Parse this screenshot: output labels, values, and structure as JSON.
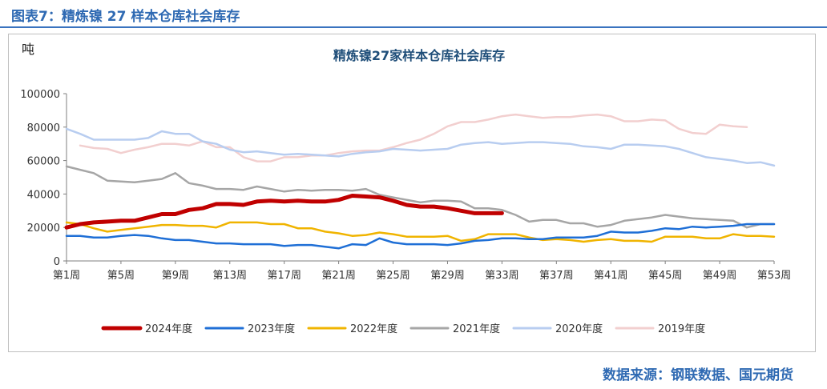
{
  "figure_title": "图表7：精炼镍 27 样本仓库社会库存",
  "source_note": "数据来源：钢联数据、国元期货",
  "chart_data": {
    "type": "line",
    "title": "精炼镍27家样本仓库社会库存",
    "ylabel": "吨",
    "xlabel": "",
    "ylim": [
      0,
      100000
    ],
    "yticks": [
      0,
      20000,
      40000,
      60000,
      80000,
      100000
    ],
    "xlim": [
      1,
      53
    ],
    "xticks": [
      1,
      5,
      9,
      13,
      17,
      21,
      25,
      29,
      33,
      37,
      41,
      45,
      49,
      53
    ],
    "xtick_labels": [
      "第1周",
      "第5周",
      "第9周",
      "第13周",
      "第17周",
      "第21周",
      "第25周",
      "第29周",
      "第33周",
      "第37周",
      "第41周",
      "第45周",
      "第49周",
      "第53周"
    ],
    "grid": false,
    "legend_position": "bottom",
    "series": [
      {
        "name": "2024年度",
        "color": "#c00000",
        "width": 5,
        "start": 1,
        "values": [
          20000,
          22000,
          23000,
          23500,
          24000,
          24000,
          26000,
          28000,
          28000,
          30500,
          31500,
          34000,
          34000,
          33500,
          35500,
          36000,
          35500,
          36000,
          35500,
          35500,
          36500,
          39000,
          38500,
          38000,
          36000,
          33500,
          32500,
          32500,
          31500,
          30000,
          28500,
          28500,
          28500
        ]
      },
      {
        "name": "2023年度",
        "color": "#1f6fd6",
        "width": 2.5,
        "start": 1,
        "values": [
          15000,
          15000,
          14000,
          14000,
          15000,
          15500,
          15000,
          13500,
          12500,
          12500,
          11500,
          10500,
          10500,
          10000,
          10000,
          10000,
          9000,
          9500,
          9500,
          8500,
          7500,
          10000,
          9500,
          13500,
          11000,
          10000,
          10000,
          10000,
          9500,
          10500,
          12000,
          12500,
          13500,
          13500,
          13000,
          13000,
          14000,
          14000,
          14000,
          15000,
          17500,
          17000,
          17000,
          18000,
          19500,
          19000,
          20500,
          20000,
          20500,
          21000,
          22000,
          22000,
          22000
        ]
      },
      {
        "name": "2022年度",
        "color": "#f0b400",
        "width": 2.5,
        "start": 1,
        "values": [
          23000,
          22000,
          19500,
          17500,
          18500,
          19500,
          20500,
          21500,
          21500,
          21000,
          21000,
          20000,
          23000,
          23000,
          23000,
          22000,
          22000,
          19500,
          19500,
          17500,
          16500,
          15000,
          15500,
          17000,
          16000,
          14500,
          14500,
          14500,
          15000,
          12000,
          13000,
          16000,
          16000,
          16000,
          14000,
          12500,
          13000,
          12500,
          11500,
          12500,
          13000,
          12000,
          12000,
          11500,
          14500,
          14500,
          14500,
          13500,
          13500,
          16000,
          15000,
          15000,
          14500
        ]
      },
      {
        "name": "2021年度",
        "color": "#a6a6a6",
        "width": 2.5,
        "start": 1,
        "values": [
          56500,
          54500,
          52500,
          48000,
          47500,
          47000,
          48000,
          49000,
          52500,
          46500,
          45000,
          43000,
          43000,
          42500,
          44500,
          43000,
          41500,
          42500,
          42000,
          42500,
          42500,
          42000,
          43000,
          39500,
          38000,
          36500,
          35000,
          36000,
          36000,
          35500,
          31500,
          31500,
          30500,
          27500,
          23500,
          24500,
          24500,
          22500,
          22500,
          20500,
          21500,
          24000,
          25000,
          26000,
          27500,
          26500,
          25500,
          25000,
          24500,
          24000,
          20000,
          22000,
          22000
        ]
      },
      {
        "name": "2020年度",
        "color": "#b8cdf0",
        "width": 2.5,
        "start": 1,
        "values": [
          79000,
          76000,
          72500,
          72500,
          72500,
          72500,
          73500,
          77500,
          76000,
          76000,
          71500,
          70000,
          66500,
          65000,
          65500,
          64500,
          63500,
          64000,
          63500,
          63000,
          62500,
          64000,
          65000,
          65500,
          67000,
          66500,
          66000,
          66500,
          67000,
          69500,
          70500,
          71000,
          70000,
          70500,
          71000,
          71000,
          70500,
          70000,
          68500,
          68000,
          67000,
          69500,
          69500,
          69000,
          68500,
          67000,
          64500,
          62000,
          61000,
          60000,
          58500,
          59000,
          57000
        ]
      },
      {
        "name": "2019年度",
        "color": "#f2cfcf",
        "width": 2.5,
        "start": 2,
        "values": [
          69000,
          67500,
          67000,
          64500,
          66500,
          68000,
          70000,
          70000,
          69000,
          71500,
          68000,
          68000,
          62000,
          59500,
          59500,
          62000,
          62000,
          63000,
          63000,
          64500,
          65500,
          66000,
          66000,
          68000,
          70500,
          72500,
          76000,
          80500,
          83000,
          83000,
          84500,
          86500,
          87500,
          86500,
          85500,
          86000,
          86000,
          87000,
          87500,
          86500,
          83500,
          83500,
          84500,
          84000,
          79000,
          76500,
          76000,
          81500,
          80500,
          80000
        ]
      }
    ]
  }
}
